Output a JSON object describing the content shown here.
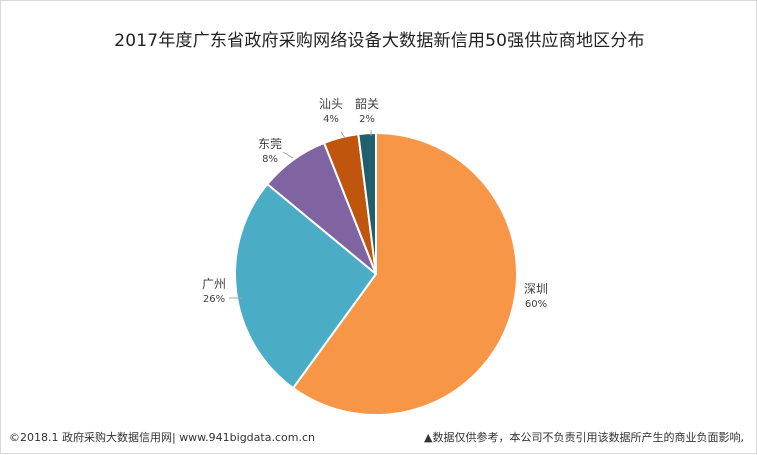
{
  "chart_data": {
    "type": "pie",
    "title": "2017年度广东省政府采购网络设备大数据新信用50强供应商地区分布",
    "slices": [
      {
        "label": "深圳",
        "value": 60,
        "value_label": "60%",
        "color": "#F79646"
      },
      {
        "label": "广州",
        "value": 26,
        "value_label": "26%",
        "color": "#4BACC6"
      },
      {
        "label": "东莞",
        "value": 8,
        "value_label": "8%",
        "color": "#8064A2"
      },
      {
        "label": "汕头",
        "value": 4,
        "value_label": "4%",
        "color": "#C0560E"
      },
      {
        "label": "韶关",
        "value": 2,
        "value_label": "2%",
        "color": "#215E6E"
      }
    ]
  },
  "footer": {
    "left": "©2018.1 政府采购大数据信用网| www.941bigdata.com.cn",
    "right": "▲数据仅供参考，本公司不负责引用该数据所产生的商业负面影响,"
  }
}
